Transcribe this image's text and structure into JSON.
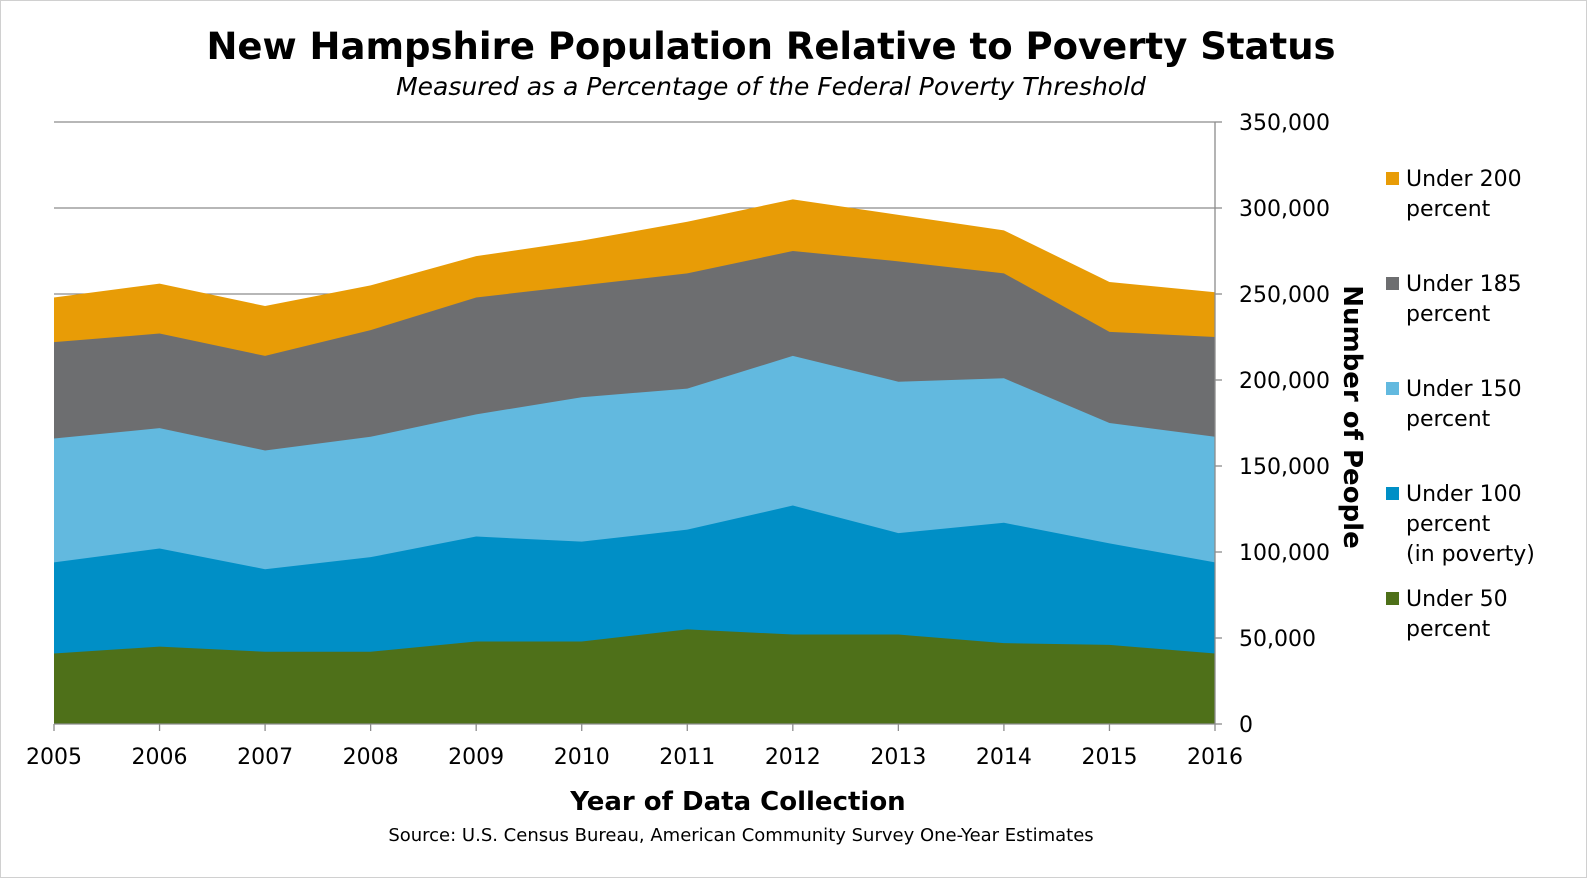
{
  "chart_data": {
    "type": "area",
    "title": "New Hampshire Population Relative to Poverty Status",
    "subtitle": "Measured as a Percentage of the Federal Poverty Threshold",
    "xlabel": "Year of Data Collection",
    "ylabel": "Number of People",
    "source": "Source: U.S. Census Bureau, American Community Survey One-Year Estimates",
    "categories": [
      "2005",
      "2006",
      "2007",
      "2008",
      "2009",
      "2010",
      "2011",
      "2012",
      "2013",
      "2014",
      "2015",
      "2016"
    ],
    "ylim": [
      0,
      350000
    ],
    "yticks": [
      0,
      50000,
      100000,
      150000,
      200000,
      250000,
      300000,
      350000
    ],
    "ytick_labels": [
      "0",
      "50,000",
      "100,000",
      "150,000",
      "200,000",
      "250,000",
      "300,000",
      "350,000"
    ],
    "y_axis_side": "right",
    "grid": true,
    "legend_position": "right",
    "series": [
      {
        "name": "Under 200 percent",
        "legend_lines": [
          "Under 200",
          "percent"
        ],
        "color": "#E89C06",
        "values": [
          248000,
          256000,
          243000,
          255000,
          272000,
          281000,
          292000,
          305000,
          296000,
          287000,
          257000,
          251000
        ]
      },
      {
        "name": "Under 185 percent",
        "legend_lines": [
          "Under 185",
          "percent"
        ],
        "color": "#6D6E70",
        "values": [
          222000,
          227000,
          214000,
          229000,
          248000,
          255000,
          262000,
          275000,
          269000,
          262000,
          228000,
          225000
        ]
      },
      {
        "name": "Under 150 percent",
        "legend_lines": [
          "Under 150",
          "percent"
        ],
        "color": "#62B9DF",
        "values": [
          166000,
          172000,
          159000,
          167000,
          180000,
          190000,
          195000,
          214000,
          199000,
          201000,
          175000,
          167000
        ]
      },
      {
        "name": "Under 100 percent (in poverty)",
        "legend_lines": [
          "Under 100",
          "percent",
          " (in poverty)"
        ],
        "color": "#008FC6",
        "values": [
          94000,
          102000,
          90000,
          97000,
          109000,
          106000,
          113000,
          127000,
          111000,
          117000,
          105000,
          94000
        ]
      },
      {
        "name": "Under 50 percent",
        "legend_lines": [
          "Under 50",
          "percent"
        ],
        "color": "#4E7019",
        "values": [
          41000,
          45000,
          42000,
          42000,
          48000,
          48000,
          55000,
          52000,
          52000,
          47000,
          46000,
          41000
        ]
      }
    ]
  }
}
